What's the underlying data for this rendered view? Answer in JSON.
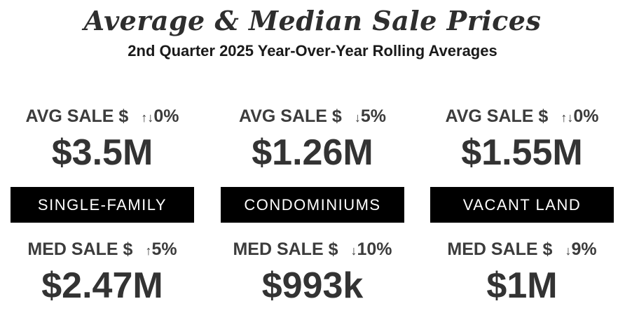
{
  "title": "Average & Median Sale Prices",
  "subtitle": "2nd Quarter 2025 Year-Over-Year Rolling Averages",
  "colors": {
    "band_background": "#000000",
    "band_text": "#ffffff",
    "text": "#333333"
  },
  "segments": [
    {
      "name": "SINGLE-FAMILY",
      "avg_label": "AVG SALE $",
      "avg_arrow": "↑↓",
      "avg_change": "0%",
      "avg_value": "$3.5M",
      "med_label": "MED SALE $",
      "med_arrow": "↑",
      "med_change": "5%",
      "med_value": "$2.47M"
    },
    {
      "name": "CONDOMINIUMS",
      "avg_label": "AVG SALE $",
      "avg_arrow": "↓",
      "avg_change": "5%",
      "avg_value": "$1.26M",
      "med_label": "MED SALE $",
      "med_arrow": "↓",
      "med_change": "10%",
      "med_value": "$993k"
    },
    {
      "name": "VACANT LAND",
      "avg_label": "AVG SALE $",
      "avg_arrow": "↑↓",
      "avg_change": "0%",
      "avg_value": "$1.55M",
      "med_label": "MED SALE $",
      "med_arrow": "↓",
      "med_change": "9%",
      "med_value": "$1M"
    }
  ]
}
